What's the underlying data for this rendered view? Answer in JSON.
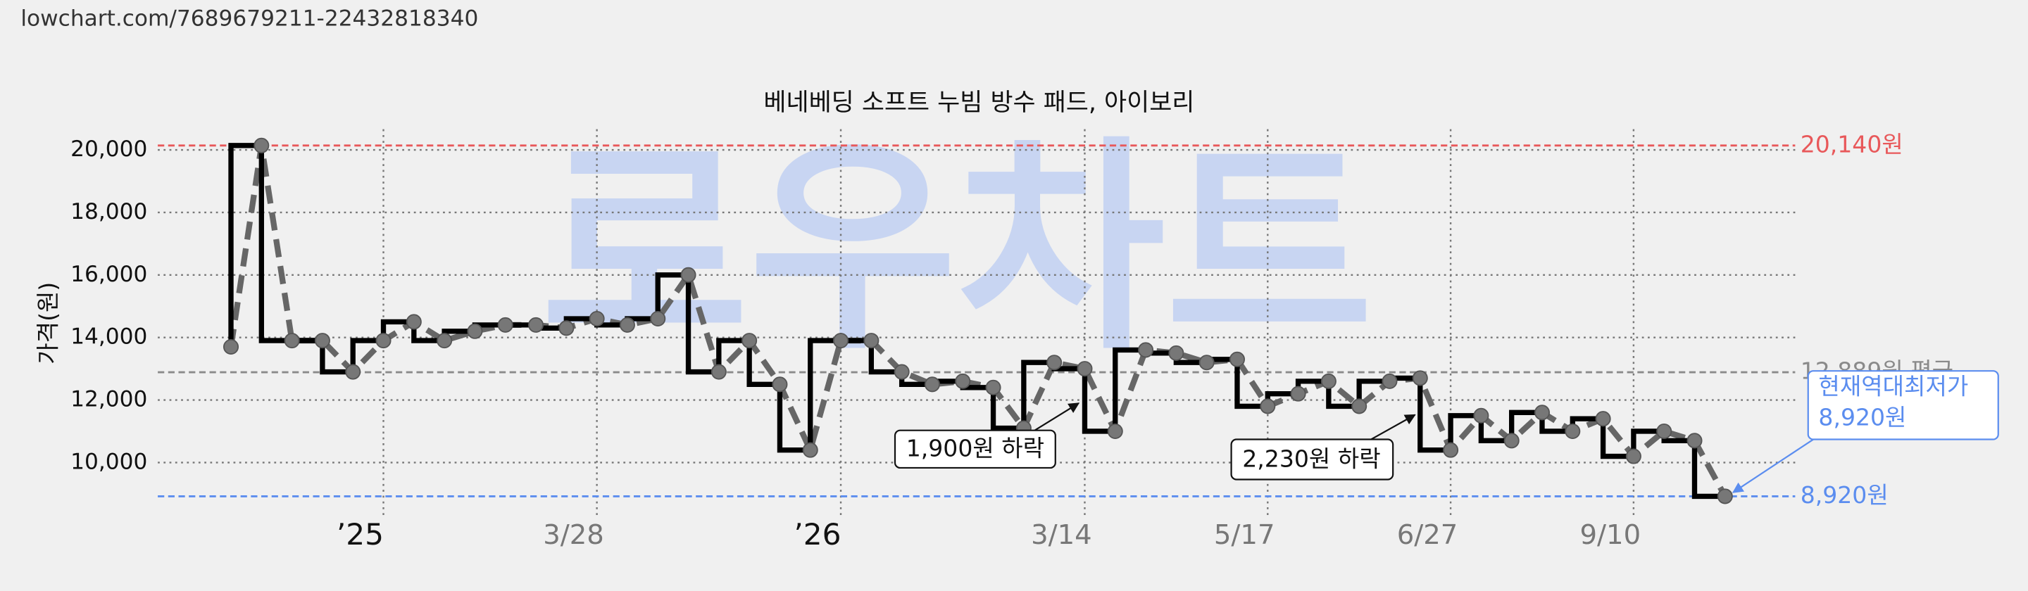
{
  "header": {
    "url": "lowchart.com/7689679211-22432818340"
  },
  "chart_data": {
    "type": "step-line",
    "title": "베네베딩 소프트 누빔 방수 패드, 아이보리",
    "y_label": "가격(원)",
    "watermark": "로우차트",
    "x": [
      0,
      1,
      2,
      3,
      4,
      5,
      6,
      7,
      8,
      9,
      10,
      11,
      12,
      13,
      14,
      15,
      16,
      17,
      18,
      19,
      20,
      21,
      22,
      23,
      24,
      25,
      26,
      27,
      28,
      29,
      30,
      31,
      32,
      33,
      34,
      35,
      36,
      37,
      38,
      39,
      40,
      41,
      42,
      43,
      44,
      45,
      46,
      47,
      48,
      49
    ],
    "values": [
      13700,
      20140,
      13900,
      13900,
      12900,
      13900,
      14500,
      13900,
      14200,
      14400,
      14400,
      14300,
      14600,
      14400,
      14600,
      16000,
      12900,
      13900,
      12500,
      10400,
      13900,
      13900,
      12900,
      12500,
      12600,
      12400,
      11100,
      13200,
      13000,
      11000,
      13600,
      13500,
      13200,
      13300,
      11800,
      12200,
      12600,
      11800,
      12600,
      12700,
      10400,
      11500,
      10700,
      11600,
      11000,
      11400,
      10200,
      11000,
      10700,
      8920
    ],
    "xlim": [
      -2.4,
      51.3
    ],
    "ylim": [
      8260,
      20660
    ],
    "xticks": [
      {
        "value": 5,
        "label": "’25"
      },
      {
        "value": 12,
        "label": "3/28"
      },
      {
        "value": 20,
        "label": "’26"
      },
      {
        "value": 28,
        "label": "3/14"
      },
      {
        "value": 34,
        "label": "5/17"
      },
      {
        "value": 40,
        "label": "6/27"
      },
      {
        "value": 46,
        "label": "9/10"
      }
    ],
    "yticks": [
      {
        "value": 10000,
        "label": "10,000"
      },
      {
        "value": 12000,
        "label": "12,000"
      },
      {
        "value": 14000,
        "label": "14,000"
      },
      {
        "value": 16000,
        "label": "16,000"
      },
      {
        "value": 18000,
        "label": "18,000"
      },
      {
        "value": 20000,
        "label": "20,000"
      }
    ],
    "grid": true,
    "reference_lines": [
      {
        "value": 20140,
        "label": "20,140원",
        "color": "#e8585a"
      },
      {
        "value": 12889,
        "label": "12,889원 평균",
        "color": "#8a8a8a"
      },
      {
        "value": 8920,
        "label": "8,920원",
        "color": "#5b8def"
      }
    ],
    "annotations": [
      {
        "text": "1,900원 하락"
      },
      {
        "text": "2,230원 하락"
      },
      {
        "lines": [
          "현재역대최저가",
          "8,920원"
        ]
      }
    ]
  }
}
